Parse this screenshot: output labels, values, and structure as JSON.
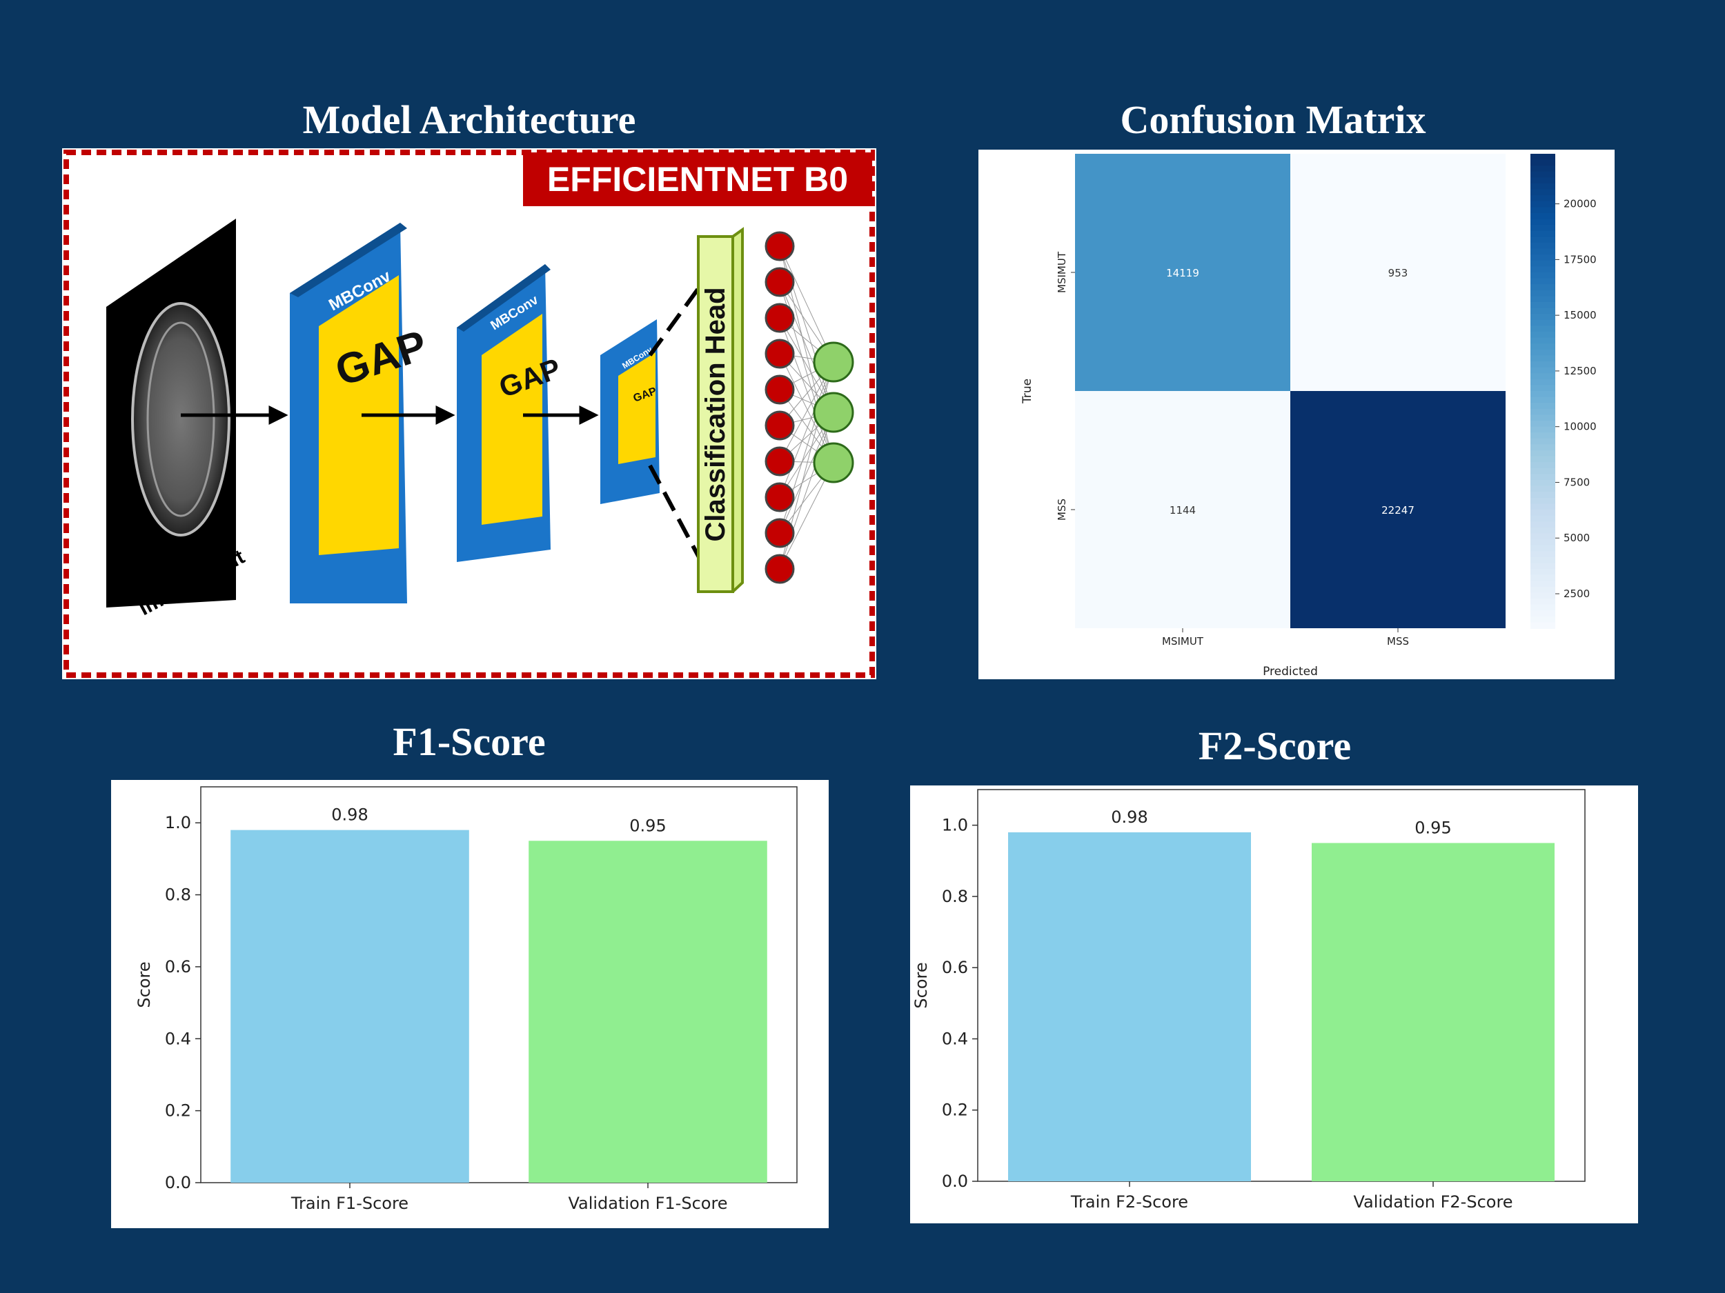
{
  "titles": {
    "architecture": "Model Architecture",
    "confusion": "Confusion Matrix",
    "f1": "F1-Score",
    "f2": "F2-Score"
  },
  "architecture": {
    "banner": "EFFICIENTNET B0",
    "input_label": "Image Input",
    "block_label": "MBConv",
    "pool_label": "GAP",
    "head_label": "Classification Head",
    "hidden_nodes": 10,
    "output_nodes": 3,
    "colors": {
      "banner": "#c00000",
      "block": "#1b75c9",
      "pool": "#ffd700",
      "head": "#e6f7a8",
      "hidden_node": "#c40000",
      "output_node": "#8fd16a"
    }
  },
  "chart_data": [
    {
      "type": "heatmap",
      "title": "",
      "xlabel": "Predicted",
      "ylabel": "True",
      "x_categories": [
        "MSIMUT",
        "MSS"
      ],
      "y_categories": [
        "MSIMUT",
        "MSS"
      ],
      "values": [
        [
          14119,
          953
        ],
        [
          1144,
          22247
        ]
      ],
      "colormap": "Blues",
      "colorbar_range": [
        953,
        22247
      ],
      "colorbar_ticks": [
        "2500",
        "5000",
        "7500",
        "10000",
        "12500",
        "15000",
        "17500",
        "20000"
      ]
    },
    {
      "type": "bar",
      "title": "",
      "categories": [
        "Train F1-Score",
        "Validation F1-Score"
      ],
      "values": [
        0.98,
        0.95
      ],
      "value_labels": [
        "0.98",
        "0.95"
      ],
      "colors": [
        "#87ceeb",
        "#90ee90"
      ],
      "xlabel": "",
      "ylabel": "Score",
      "ylim": [
        0,
        1.1
      ],
      "yticks": [
        "0.0",
        "0.2",
        "0.4",
        "0.6",
        "0.8",
        "1.0"
      ]
    },
    {
      "type": "bar",
      "title": "",
      "categories": [
        "Train F2-Score",
        "Validation F2-Score"
      ],
      "values": [
        0.98,
        0.95
      ],
      "value_labels": [
        "0.98",
        "0.95"
      ],
      "colors": [
        "#87ceeb",
        "#90ee90"
      ],
      "xlabel": "",
      "ylabel": "Score",
      "ylim": [
        0,
        1.1
      ],
      "yticks": [
        "0.0",
        "0.2",
        "0.4",
        "0.6",
        "0.8",
        "1.0"
      ]
    }
  ]
}
